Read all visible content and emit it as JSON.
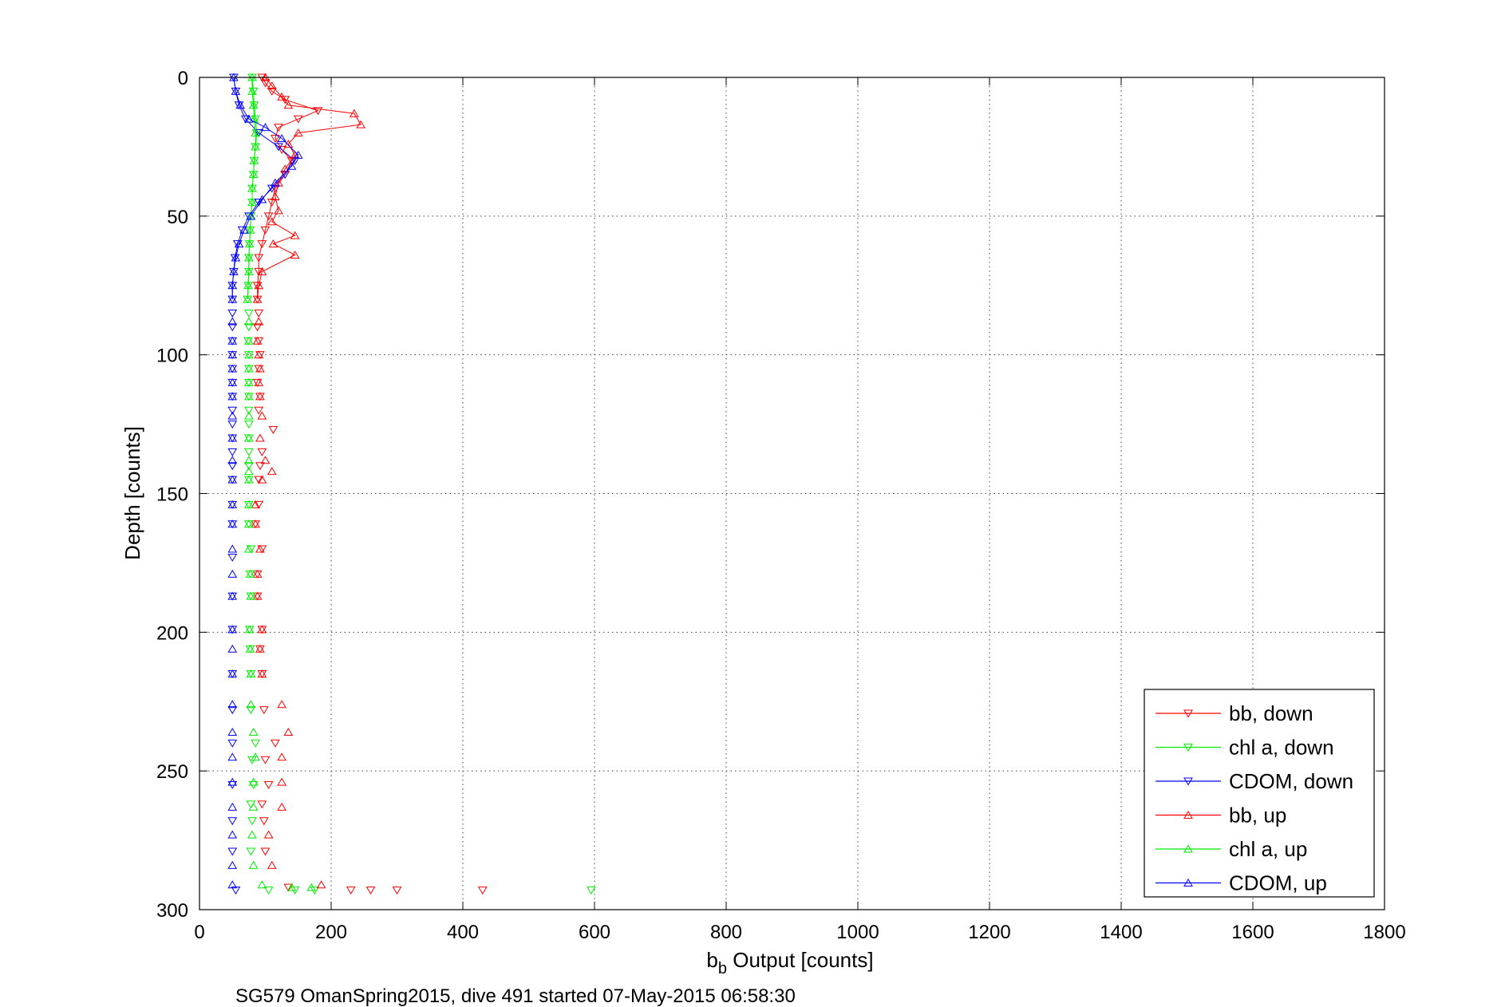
{
  "chart_data": {
    "type": "scatter",
    "xlabel_main": "b",
    "xlabel_sub": "b",
    "xlabel_rest": " Output [counts]",
    "ylabel": "Depth [counts]",
    "caption": "SG579 OmanSpring2015, dive 491 started 07-May-2015 06:58:30",
    "xlim": [
      0,
      1800
    ],
    "ylim": [
      0,
      300
    ],
    "y_reversed": true,
    "grid": true,
    "legend_position": "bottom-right",
    "x_ticks": [
      "0",
      "200",
      "400",
      "600",
      "800",
      "1000",
      "1200",
      "1400",
      "1600",
      "1800"
    ],
    "y_ticks": [
      "0",
      "50",
      "100",
      "150",
      "200",
      "250",
      "300"
    ],
    "series": [
      {
        "name": "bb, down",
        "color": "#ff0000",
        "marker": "triangle-down",
        "points": [
          [
            95,
            0
          ],
          [
            100,
            2
          ],
          [
            110,
            5
          ],
          [
            130,
            8
          ],
          [
            180,
            12
          ],
          [
            150,
            15
          ],
          [
            120,
            18
          ],
          [
            115,
            22
          ],
          [
            125,
            26
          ],
          [
            140,
            30
          ],
          [
            130,
            35
          ],
          [
            115,
            40
          ],
          [
            110,
            45
          ],
          [
            105,
            50
          ],
          [
            100,
            55
          ],
          [
            95,
            60
          ],
          [
            90,
            65
          ],
          [
            90,
            70
          ],
          [
            88,
            75
          ],
          [
            88,
            80
          ],
          [
            90,
            85
          ],
          [
            88,
            90
          ],
          [
            90,
            95
          ],
          [
            92,
            100
          ],
          [
            90,
            105
          ],
          [
            88,
            110
          ],
          [
            92,
            115
          ],
          [
            90,
            120
          ],
          [
            112,
            127
          ],
          [
            95,
            135
          ],
          [
            92,
            140
          ],
          [
            90,
            145
          ],
          [
            90,
            154
          ],
          [
            85,
            161
          ],
          [
            95,
            170
          ],
          [
            88,
            179
          ],
          [
            88,
            187
          ],
          [
            95,
            199
          ],
          [
            92,
            206
          ],
          [
            95,
            215
          ],
          [
            98,
            228
          ],
          [
            115,
            240
          ],
          [
            100,
            246
          ],
          [
            105,
            255
          ],
          [
            95,
            262
          ],
          [
            98,
            268
          ],
          [
            100,
            279
          ],
          [
            135,
            292
          ],
          [
            230,
            293
          ],
          [
            260,
            293
          ],
          [
            300,
            293
          ],
          [
            430,
            293
          ]
        ]
      },
      {
        "name": "chl a, down",
        "color": "#00ee00",
        "marker": "triangle-down",
        "points": [
          [
            80,
            0
          ],
          [
            82,
            5
          ],
          [
            83,
            10
          ],
          [
            85,
            15
          ],
          [
            87,
            20
          ],
          [
            85,
            25
          ],
          [
            83,
            30
          ],
          [
            82,
            35
          ],
          [
            80,
            40
          ],
          [
            80,
            45
          ],
          [
            78,
            50
          ],
          [
            77,
            55
          ],
          [
            76,
            60
          ],
          [
            75,
            65
          ],
          [
            75,
            70
          ],
          [
            74,
            75
          ],
          [
            73,
            80
          ],
          [
            75,
            85
          ],
          [
            75,
            90
          ],
          [
            74,
            95
          ],
          [
            75,
            100
          ],
          [
            75,
            105
          ],
          [
            75,
            110
          ],
          [
            75,
            115
          ],
          [
            75,
            120
          ],
          [
            75,
            125
          ],
          [
            75,
            130
          ],
          [
            75,
            135
          ],
          [
            75,
            140
          ],
          [
            75,
            145
          ],
          [
            75,
            154
          ],
          [
            75,
            161
          ],
          [
            78,
            170
          ],
          [
            77,
            179
          ],
          [
            78,
            187
          ],
          [
            76,
            199
          ],
          [
            77,
            206
          ],
          [
            78,
            215
          ],
          [
            78,
            228
          ],
          [
            85,
            240
          ],
          [
            80,
            246
          ],
          [
            82,
            255
          ],
          [
            78,
            262
          ],
          [
            80,
            268
          ],
          [
            78,
            279
          ],
          [
            105,
            293
          ],
          [
            145,
            293
          ],
          [
            175,
            293
          ],
          [
            595,
            293
          ]
        ]
      },
      {
        "name": "CDOM, down",
        "color": "#0000ff",
        "marker": "triangle-down",
        "points": [
          [
            52,
            0
          ],
          [
            55,
            5
          ],
          [
            60,
            10
          ],
          [
            70,
            15
          ],
          [
            90,
            20
          ],
          [
            120,
            25
          ],
          [
            145,
            30
          ],
          [
            130,
            35
          ],
          [
            110,
            40
          ],
          [
            90,
            45
          ],
          [
            75,
            50
          ],
          [
            65,
            55
          ],
          [
            58,
            60
          ],
          [
            54,
            65
          ],
          [
            52,
            70
          ],
          [
            50,
            75
          ],
          [
            50,
            80
          ],
          [
            50,
            85
          ],
          [
            50,
            90
          ],
          [
            50,
            95
          ],
          [
            50,
            100
          ],
          [
            50,
            105
          ],
          [
            50,
            110
          ],
          [
            50,
            115
          ],
          [
            50,
            120
          ],
          [
            50,
            125
          ],
          [
            50,
            130
          ],
          [
            50,
            135
          ],
          [
            50,
            140
          ],
          [
            50,
            145
          ],
          [
            50,
            154
          ],
          [
            50,
            161
          ],
          [
            50,
            173
          ],
          [
            50,
            187
          ],
          [
            50,
            199
          ],
          [
            50,
            215
          ],
          [
            50,
            228
          ],
          [
            50,
            240
          ],
          [
            50,
            255
          ],
          [
            50,
            268
          ],
          [
            50,
            279
          ],
          [
            55,
            293
          ]
        ]
      },
      {
        "name": "bb, up",
        "color": "#ff0000",
        "marker": "triangle-up",
        "points": [
          [
            100,
            0
          ],
          [
            110,
            3
          ],
          [
            125,
            7
          ],
          [
            135,
            10
          ],
          [
            235,
            13
          ],
          [
            245,
            17
          ],
          [
            150,
            20
          ],
          [
            135,
            24
          ],
          [
            145,
            28
          ],
          [
            130,
            33
          ],
          [
            120,
            38
          ],
          [
            115,
            43
          ],
          [
            120,
            48
          ],
          [
            110,
            52
          ],
          [
            145,
            57
          ],
          [
            112,
            60
          ],
          [
            145,
            64
          ],
          [
            95,
            70
          ],
          [
            90,
            75
          ],
          [
            88,
            80
          ],
          [
            90,
            88
          ],
          [
            88,
            95
          ],
          [
            90,
            100
          ],
          [
            92,
            105
          ],
          [
            90,
            110
          ],
          [
            92,
            115
          ],
          [
            95,
            122
          ],
          [
            92,
            130
          ],
          [
            100,
            138
          ],
          [
            110,
            142
          ],
          [
            95,
            145
          ],
          [
            85,
            154
          ],
          [
            85,
            161
          ],
          [
            92,
            170
          ],
          [
            88,
            179
          ],
          [
            88,
            187
          ],
          [
            95,
            199
          ],
          [
            92,
            206
          ],
          [
            95,
            215
          ],
          [
            125,
            226
          ],
          [
            135,
            236
          ],
          [
            125,
            245
          ],
          [
            125,
            254
          ],
          [
            125,
            263
          ],
          [
            105,
            273
          ],
          [
            110,
            284
          ],
          [
            185,
            291
          ]
        ]
      },
      {
        "name": "chl a, up",
        "color": "#00ee00",
        "marker": "triangle-up",
        "points": [
          [
            80,
            0
          ],
          [
            80,
            5
          ],
          [
            82,
            10
          ],
          [
            83,
            15
          ],
          [
            85,
            20
          ],
          [
            85,
            25
          ],
          [
            83,
            30
          ],
          [
            82,
            35
          ],
          [
            80,
            40
          ],
          [
            80,
            45
          ],
          [
            78,
            50
          ],
          [
            77,
            55
          ],
          [
            76,
            60
          ],
          [
            75,
            65
          ],
          [
            75,
            70
          ],
          [
            74,
            75
          ],
          [
            73,
            80
          ],
          [
            75,
            88
          ],
          [
            75,
            95
          ],
          [
            75,
            100
          ],
          [
            75,
            105
          ],
          [
            75,
            110
          ],
          [
            75,
            115
          ],
          [
            75,
            122
          ],
          [
            75,
            130
          ],
          [
            75,
            138
          ],
          [
            75,
            142
          ],
          [
            75,
            145
          ],
          [
            75,
            154
          ],
          [
            75,
            161
          ],
          [
            75,
            170
          ],
          [
            77,
            179
          ],
          [
            78,
            187
          ],
          [
            76,
            199
          ],
          [
            77,
            206
          ],
          [
            78,
            215
          ],
          [
            78,
            226
          ],
          [
            82,
            236
          ],
          [
            85,
            245
          ],
          [
            82,
            254
          ],
          [
            82,
            263
          ],
          [
            80,
            273
          ],
          [
            82,
            284
          ],
          [
            95,
            291
          ],
          [
            140,
            292
          ],
          [
            170,
            292
          ]
        ]
      },
      {
        "name": "CDOM, up",
        "color": "#0000ff",
        "marker": "triangle-up",
        "points": [
          [
            52,
            0
          ],
          [
            55,
            5
          ],
          [
            62,
            10
          ],
          [
            75,
            15
          ],
          [
            100,
            18
          ],
          [
            125,
            22
          ],
          [
            150,
            28
          ],
          [
            140,
            32
          ],
          [
            115,
            38
          ],
          [
            95,
            44
          ],
          [
            78,
            50
          ],
          [
            68,
            55
          ],
          [
            60,
            60
          ],
          [
            55,
            65
          ],
          [
            52,
            70
          ],
          [
            50,
            75
          ],
          [
            50,
            80
          ],
          [
            50,
            88
          ],
          [
            50,
            95
          ],
          [
            50,
            100
          ],
          [
            50,
            105
          ],
          [
            50,
            110
          ],
          [
            50,
            115
          ],
          [
            50,
            122
          ],
          [
            50,
            130
          ],
          [
            50,
            138
          ],
          [
            50,
            145
          ],
          [
            50,
            154
          ],
          [
            50,
            161
          ],
          [
            50,
            170
          ],
          [
            50,
            179
          ],
          [
            50,
            187
          ],
          [
            50,
            199
          ],
          [
            50,
            206
          ],
          [
            50,
            215
          ],
          [
            50,
            226
          ],
          [
            50,
            236
          ],
          [
            50,
            245
          ],
          [
            50,
            254
          ],
          [
            50,
            263
          ],
          [
            50,
            273
          ],
          [
            50,
            284
          ],
          [
            50,
            291
          ]
        ]
      }
    ]
  }
}
